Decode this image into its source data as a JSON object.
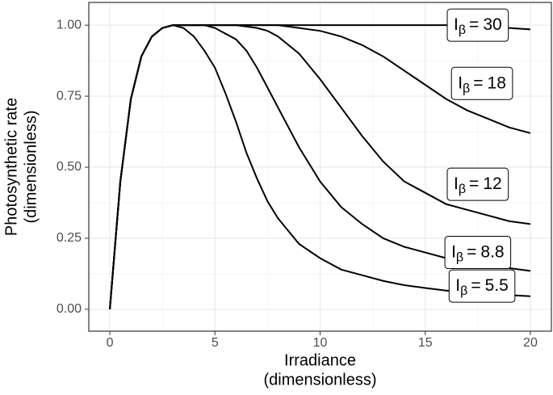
{
  "chart_data": {
    "type": "line",
    "xlabel": [
      "Irradiance",
      "(dimensionless)"
    ],
    "ylabel": [
      "Photosynthetic rate",
      "(dimensionless)"
    ],
    "label_symbol": "I",
    "label_subscript": "β",
    "label_equals": "=",
    "x": [
      0,
      0.5,
      1,
      1.5,
      2,
      2.5,
      3,
      3.5,
      4,
      4.5,
      5,
      5.5,
      6,
      6.5,
      7,
      7.5,
      8,
      9,
      10,
      11,
      12,
      13,
      14,
      15,
      16,
      17,
      18,
      19,
      20
    ],
    "series": [
      {
        "name": "30",
        "color": "#000000",
        "values": [
          0,
          0.45,
          0.74,
          0.89,
          0.96,
          0.99,
          1.0,
          1.0,
          1.0,
          1.0,
          1.0,
          1.0,
          1.0,
          1.0,
          1.0,
          1.0,
          1.0,
          1.0,
          1.0,
          1.0,
          1.0,
          1.0,
          1.0,
          1.0,
          1.0,
          1.0,
          0.995,
          0.99,
          0.985
        ]
      },
      {
        "name": "18",
        "color": "#000000",
        "values": [
          0,
          0.45,
          0.74,
          0.89,
          0.96,
          0.99,
          1.0,
          1.0,
          1.0,
          1.0,
          1.0,
          1.0,
          1.0,
          1.0,
          1.0,
          1.0,
          1.0,
          0.99,
          0.98,
          0.96,
          0.93,
          0.89,
          0.84,
          0.79,
          0.74,
          0.7,
          0.67,
          0.64,
          0.62
        ]
      },
      {
        "name": "12",
        "color": "#000000",
        "values": [
          0,
          0.45,
          0.74,
          0.89,
          0.96,
          0.99,
          1.0,
          1.0,
          1.0,
          1.0,
          1.0,
          1.0,
          1.0,
          0.995,
          0.99,
          0.98,
          0.96,
          0.9,
          0.81,
          0.71,
          0.61,
          0.52,
          0.45,
          0.41,
          0.37,
          0.35,
          0.33,
          0.31,
          0.3
        ]
      },
      {
        "name": "8.8",
        "color": "#000000",
        "values": [
          0,
          0.45,
          0.74,
          0.89,
          0.96,
          0.99,
          1.0,
          1.0,
          1.0,
          1.0,
          0.99,
          0.97,
          0.95,
          0.91,
          0.85,
          0.78,
          0.71,
          0.57,
          0.45,
          0.36,
          0.3,
          0.25,
          0.22,
          0.2,
          0.18,
          0.165,
          0.155,
          0.145,
          0.135
        ]
      },
      {
        "name": "5.5",
        "color": "#000000",
        "values": [
          0,
          0.45,
          0.74,
          0.89,
          0.96,
          0.99,
          1.0,
          0.99,
          0.96,
          0.91,
          0.85,
          0.76,
          0.66,
          0.55,
          0.46,
          0.38,
          0.32,
          0.23,
          0.18,
          0.14,
          0.12,
          0.1,
          0.085,
          0.075,
          0.066,
          0.06,
          0.054,
          0.05,
          0.046
        ]
      }
    ],
    "xlim": [
      -1,
      21
    ],
    "ylim": [
      -0.077,
      1.08
    ],
    "xticks": [
      0,
      5,
      10,
      15,
      20
    ],
    "yticks": [
      {
        "value": 0,
        "label": "0.00"
      },
      {
        "value": 0.25,
        "label": "0.25"
      },
      {
        "value": 0.5,
        "label": "0.50"
      },
      {
        "value": 0.75,
        "label": "0.75"
      },
      {
        "value": 1,
        "label": "1.00"
      }
    ],
    "grid": true,
    "legend": false
  }
}
